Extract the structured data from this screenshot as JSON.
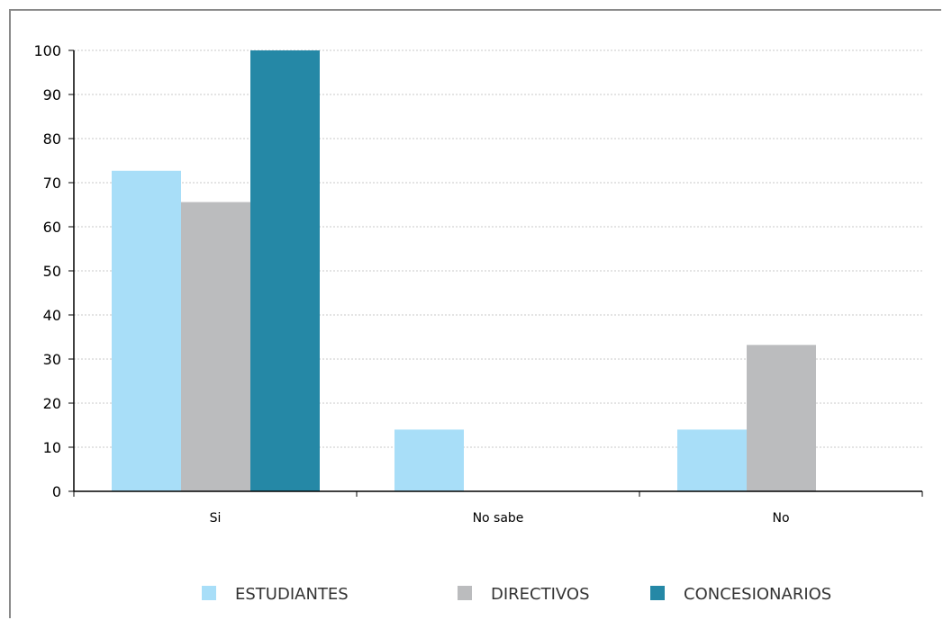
{
  "chart_data": {
    "type": "bar",
    "categories": [
      "Si",
      "No sabe",
      "No"
    ],
    "series": [
      {
        "name": "ESTUDIANTES",
        "color": "#a8def8",
        "values": [
          72.7,
          14,
          14
        ]
      },
      {
        "name": "DIRECTIVOS",
        "color": "#bbbcbe",
        "values": [
          65.6,
          0,
          33.2
        ]
      },
      {
        "name": "CONCESIONARIOS",
        "color": "#2588a6",
        "values": [
          100,
          0,
          0
        ]
      }
    ],
    "yticks": [
      "0",
      "10",
      "20",
      "30",
      "40",
      "50",
      "60",
      "70",
      "80",
      "90",
      "100"
    ],
    "ylim": [
      0,
      100
    ],
    "title": "",
    "xlabel": "",
    "ylabel": "",
    "grid": true,
    "legend_position": "bottom"
  }
}
